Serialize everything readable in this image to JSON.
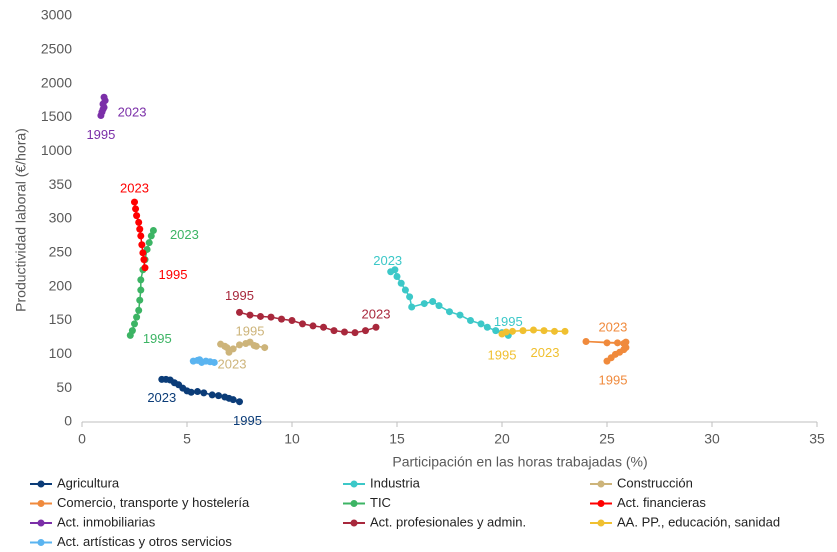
{
  "chart_data": {
    "type": "line",
    "x_label": "Participación en las horas trabajadas (%)",
    "y_label": "Productividad laboral (€/hora)",
    "xlim": [
      0,
      35
    ],
    "xticks": [
      0,
      5,
      10,
      15,
      20,
      25,
      30,
      35
    ],
    "ylim": [
      0,
      3000
    ],
    "yticks": [
      0,
      50,
      100,
      150,
      200,
      250,
      300,
      350,
      1000,
      1500,
      2000,
      2500,
      3000
    ],
    "markers": true,
    "series": [
      {
        "name": "Agricultura",
        "color": "#0b3c78",
        "start_label": "1995",
        "end_label": "2023",
        "x": [
          7.5,
          7.2,
          7.0,
          6.8,
          6.5,
          6.2,
          5.8,
          5.5,
          5.2,
          5.0,
          4.8,
          4.6,
          4.4,
          4.2,
          4.0,
          3.8
        ],
        "y": [
          30,
          33,
          35,
          37,
          39,
          40,
          43,
          45,
          44,
          46,
          50,
          55,
          58,
          62,
          63,
          63
        ]
      },
      {
        "name": "Industria",
        "color": "#3cc8c8",
        "start_label": "1995",
        "end_label": "2023",
        "x": [
          20.3,
          20.0,
          19.7,
          19.3,
          19.0,
          18.5,
          18.0,
          17.5,
          17.0,
          16.7,
          16.3,
          15.7,
          15.6,
          15.4,
          15.2,
          15.0,
          14.9,
          14.7
        ],
        "y": [
          128,
          132,
          135,
          140,
          145,
          150,
          158,
          163,
          172,
          178,
          175,
          170,
          185,
          195,
          205,
          215,
          225,
          222
        ]
      },
      {
        "name": "Construcción",
        "color": "#cdb47a",
        "start_label": "1995",
        "end_label": "2023",
        "x": [
          8.0,
          8.3,
          8.7,
          8.2,
          7.8,
          7.5,
          7.2,
          6.8,
          6.6,
          6.9,
          7.0
        ],
        "y": [
          118,
          112,
          110,
          113,
          116,
          114,
          108,
          112,
          115,
          110,
          103
        ]
      },
      {
        "name": "Comercio, transporte y hostelería",
        "color": "#f08a3c",
        "start_label": "1995",
        "end_label": "2023",
        "x": [
          25.0,
          25.2,
          25.4,
          25.6,
          25.8,
          25.9,
          25.8,
          25.0,
          24.0,
          25.5,
          25.9
        ],
        "y": [
          90,
          95,
          100,
          103,
          107,
          110,
          116,
          117,
          119,
          117,
          118
        ]
      },
      {
        "name": "TIC",
        "color": "#3cb464",
        "start_label": "1995",
        "end_label": "2023",
        "x": [
          2.3,
          2.4,
          2.5,
          2.6,
          2.7,
          2.75,
          2.8,
          2.8,
          2.9,
          3.0,
          3.1,
          3.2,
          3.3,
          3.4
        ],
        "y": [
          128,
          135,
          145,
          155,
          165,
          180,
          195,
          210,
          225,
          240,
          255,
          265,
          275,
          283
        ]
      },
      {
        "name": "Act. financieras",
        "color": "#ff0000",
        "start_label": "1995",
        "end_label": "2023",
        "x": [
          3.0,
          2.95,
          2.9,
          2.85,
          2.8,
          2.75,
          2.7,
          2.6,
          2.55,
          2.5
        ],
        "y": [
          228,
          240,
          250,
          262,
          275,
          285,
          295,
          305,
          315,
          325
        ]
      },
      {
        "name": "Act. inmobiliarias",
        "color": "#7b2fa8",
        "start_label": "1995",
        "end_label": "2023",
        "x": [
          0.9,
          0.95,
          1.0,
          1.05,
          1.0,
          1.1,
          1.05
        ],
        "y": [
          1530,
          1580,
          1620,
          1650,
          1700,
          1750,
          1800
        ]
      },
      {
        "name": "Act. profesionales y admin.",
        "color": "#a8283c",
        "start_label": "1995",
        "end_label": "2023",
        "x": [
          7.5,
          8.0,
          8.5,
          9.0,
          9.5,
          10.0,
          10.5,
          11.0,
          11.5,
          12.0,
          12.5,
          13.0,
          13.5,
          14.0
        ],
        "y": [
          162,
          158,
          156,
          155,
          152,
          150,
          145,
          142,
          140,
          135,
          133,
          132,
          135,
          140
        ]
      },
      {
        "name": "AA. PP., educación, sanidad",
        "color": "#f0c030",
        "start_label": "1995",
        "end_label": "2023",
        "x": [
          20.0,
          20.2,
          20.5,
          21.0,
          21.5,
          22.0,
          22.5,
          23.0
        ],
        "y": [
          130,
          133,
          134,
          135,
          136,
          135,
          134,
          134
        ]
      },
      {
        "name": "Act. artísticas y otros servicios",
        "color": "#5ab4f0",
        "x": [
          5.3,
          5.5,
          5.7,
          5.9,
          6.1,
          6.3,
          5.6
        ],
        "y": [
          90,
          91,
          88,
          90,
          89,
          88,
          92
        ]
      }
    ]
  }
}
